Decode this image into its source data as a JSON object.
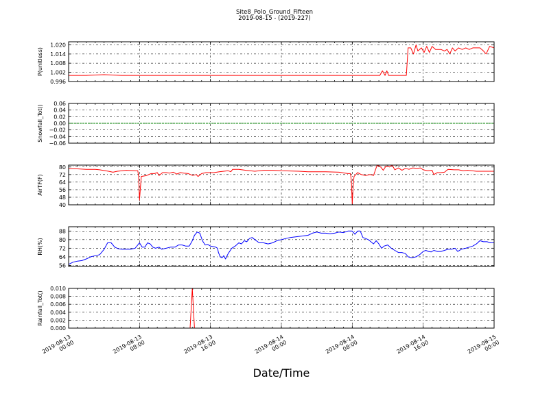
{
  "chart_data": {
    "type": "line",
    "title": "Site8_Polo_Ground_Fifteen",
    "subtitle": "2019-08-15 - (2019-227)",
    "xlabel": "Date/Time",
    "x_ticks": [
      {
        "line1": "2019-08-13",
        "line2": "00:00"
      },
      {
        "line1": "2019-08-13",
        "line2": "08:00"
      },
      {
        "line1": "2019-08-13",
        "line2": "16:00"
      },
      {
        "line1": "2019-08-14",
        "line2": "00:00"
      },
      {
        "line1": "2019-08-14",
        "line2": "08:00"
      },
      {
        "line1": "2019-08-14",
        "line2": "16:00"
      },
      {
        "line1": "2019-08-15",
        "line2": "00:00"
      }
    ],
    "x_range_hours": [
      0,
      48
    ],
    "grid": true,
    "panels": [
      {
        "ylabel": "P(unitless)",
        "color": "#ff0000",
        "ylim": [
          0.996,
          1.022
        ],
        "yticks": [
          "1.020",
          "1.014",
          "1.008",
          "1.002",
          "0.996"
        ],
        "yticks_num": [
          1.02,
          1.014,
          1.008,
          1.002,
          0.996
        ],
        "points": [
          [
            0,
            1.0
          ],
          [
            0.5,
            1.0
          ],
          [
            2,
            1.0
          ],
          [
            4,
            1.0005
          ],
          [
            6,
            1.0
          ],
          [
            10,
            1.0
          ],
          [
            15,
            1.0
          ],
          [
            20,
            1.0
          ],
          [
            25,
            1.0
          ],
          [
            30,
            1.0
          ],
          [
            35,
            1.0
          ],
          [
            35.1,
            1.0
          ],
          [
            35.4,
            1.003
          ],
          [
            35.7,
            1.0
          ],
          [
            35.9,
            1.003
          ],
          [
            36.1,
            1.0
          ],
          [
            37,
            1.0
          ],
          [
            38.1,
            1.0
          ],
          [
            38.3,
            1.018
          ],
          [
            38.6,
            1.018
          ],
          [
            38.9,
            1.014
          ],
          [
            39.2,
            1.02
          ],
          [
            39.4,
            1.016
          ],
          [
            39.8,
            1.018
          ],
          [
            40.1,
            1.015
          ],
          [
            40.4,
            1.019
          ],
          [
            40.7,
            1.015
          ],
          [
            41.0,
            1.019
          ],
          [
            41.4,
            1.017
          ],
          [
            42,
            1.017
          ],
          [
            42.4,
            1.016
          ],
          [
            42.7,
            1.017
          ],
          [
            43.0,
            1.014
          ],
          [
            43.3,
            1.018
          ],
          [
            43.6,
            1.016
          ],
          [
            44,
            1.018
          ],
          [
            44.4,
            1.017
          ],
          [
            44.8,
            1.018
          ],
          [
            45.2,
            1.017
          ],
          [
            45.6,
            1.018
          ],
          [
            46,
            1.018
          ],
          [
            46.4,
            1.018
          ],
          [
            46.8,
            1.016
          ],
          [
            47.1,
            1.014
          ],
          [
            47.5,
            1.019
          ],
          [
            48,
            1.018
          ]
        ]
      },
      {
        "ylabel": "Snowfall_Tot()",
        "color": "#008000",
        "ylim": [
          -0.06,
          0.06
        ],
        "yticks": [
          "0.06",
          "0.04",
          "0.02",
          "0.00",
          "−0.02",
          "−0.04",
          "−0.06"
        ],
        "yticks_num": [
          0.06,
          0.04,
          0.02,
          0.0,
          -0.02,
          -0.04,
          -0.06
        ],
        "points": [
          [
            0,
            0.0
          ],
          [
            48,
            0.0
          ]
        ]
      },
      {
        "ylabel": "AirTF(F)",
        "color": "#ff0000",
        "ylim": [
          40,
          82
        ],
        "yticks": [
          "80",
          "72",
          "64",
          "56",
          "48",
          "40"
        ],
        "yticks_num": [
          80,
          72,
          64,
          56,
          48,
          40
        ],
        "points": [
          [
            0,
            78
          ],
          [
            1,
            78
          ],
          [
            2,
            77.5
          ],
          [
            3,
            77.5
          ],
          [
            3.5,
            77
          ],
          [
            4.5,
            75.5
          ],
          [
            5,
            74.5
          ],
          [
            5.5,
            75.5
          ],
          [
            6.5,
            76.5
          ],
          [
            7.5,
            76
          ],
          [
            7.8,
            76
          ],
          [
            7.9,
            70
          ],
          [
            8.0,
            45
          ],
          [
            8.1,
            58
          ],
          [
            8.2,
            70
          ],
          [
            8.8,
            71
          ],
          [
            9.3,
            73
          ],
          [
            9.7,
            73
          ],
          [
            10,
            74
          ],
          [
            10.2,
            71
          ],
          [
            10.6,
            74
          ],
          [
            11,
            74
          ],
          [
            11.4,
            73.5
          ],
          [
            11.8,
            74.5
          ],
          [
            12.2,
            72.5
          ],
          [
            12.6,
            74
          ],
          [
            13,
            73.5
          ],
          [
            13.5,
            73
          ],
          [
            14,
            71
          ],
          [
            14.4,
            72
          ],
          [
            14.6,
            70
          ],
          [
            15,
            73
          ],
          [
            15.5,
            74
          ],
          [
            16.4,
            74
          ],
          [
            17,
            75
          ],
          [
            18,
            76
          ],
          [
            18.3,
            75
          ],
          [
            18.5,
            77.5
          ],
          [
            19.2,
            77.5
          ],
          [
            20,
            76.5
          ],
          [
            21,
            75.5
          ],
          [
            22,
            76.5
          ],
          [
            23,
            76.5
          ],
          [
            24,
            76
          ],
          [
            26,
            75.5
          ],
          [
            27,
            75
          ],
          [
            29,
            75
          ],
          [
            30.5,
            74.5
          ],
          [
            31.5,
            73
          ],
          [
            31.8,
            73
          ],
          [
            31.9,
            65
          ],
          [
            32.0,
            41
          ],
          [
            32.1,
            60
          ],
          [
            32.2,
            70
          ],
          [
            32.6,
            74
          ],
          [
            33,
            72
          ],
          [
            33.5,
            71
          ],
          [
            34,
            72
          ],
          [
            34.4,
            71
          ],
          [
            34.8,
            82
          ],
          [
            35.2,
            80
          ],
          [
            35.5,
            76.5
          ],
          [
            35.8,
            81
          ],
          [
            36.2,
            80
          ],
          [
            36.5,
            82
          ],
          [
            36.8,
            77
          ],
          [
            37.2,
            79
          ],
          [
            37.6,
            76.5
          ],
          [
            38,
            78.5
          ],
          [
            38.4,
            77.5
          ],
          [
            38.8,
            79
          ],
          [
            39.3,
            78.5
          ],
          [
            39.7,
            79
          ],
          [
            40,
            77
          ],
          [
            40.5,
            76
          ],
          [
            41,
            76.5
          ],
          [
            41.2,
            72
          ],
          [
            41.6,
            74
          ],
          [
            42,
            74
          ],
          [
            42.4,
            74.5
          ],
          [
            42.8,
            77.5
          ],
          [
            43.5,
            77
          ],
          [
            44,
            77
          ],
          [
            44.5,
            76
          ],
          [
            45,
            76.5
          ],
          [
            46,
            75.5
          ],
          [
            47,
            75.5
          ],
          [
            48,
            75.5
          ]
        ]
      },
      {
        "ylabel": "RH(%)",
        "color": "#0000ff",
        "ylim": [
          55,
          92
        ],
        "yticks": [
          "88",
          "80",
          "72",
          "64",
          "56"
        ],
        "yticks_num": [
          88,
          80,
          72,
          64,
          56
        ],
        "points": [
          [
            0,
            57
          ],
          [
            0.5,
            59
          ],
          [
            1,
            60
          ],
          [
            1.5,
            60.5
          ],
          [
            2,
            62
          ],
          [
            2.5,
            64
          ],
          [
            3,
            65
          ],
          [
            3.5,
            66
          ],
          [
            4,
            71
          ],
          [
            4.4,
            77
          ],
          [
            4.8,
            77
          ],
          [
            5.2,
            73
          ],
          [
            5.6,
            71.5
          ],
          [
            6,
            71
          ],
          [
            6.5,
            71
          ],
          [
            7,
            71
          ],
          [
            7.5,
            72
          ],
          [
            7.8,
            75
          ],
          [
            8.0,
            77
          ],
          [
            8.3,
            73
          ],
          [
            8.6,
            73
          ],
          [
            8.9,
            77
          ],
          [
            9.2,
            76
          ],
          [
            9.5,
            73
          ],
          [
            9.8,
            72
          ],
          [
            10.2,
            73
          ],
          [
            10.5,
            71
          ],
          [
            11,
            72
          ],
          [
            11.5,
            73
          ],
          [
            12,
            73
          ],
          [
            12.4,
            75
          ],
          [
            12.8,
            75
          ],
          [
            13.2,
            74
          ],
          [
            13.6,
            74
          ],
          [
            13.9,
            78
          ],
          [
            14.2,
            84
          ],
          [
            14.5,
            87
          ],
          [
            14.8,
            86
          ],
          [
            15.1,
            79
          ],
          [
            15.4,
            75
          ],
          [
            15.7,
            75.5
          ],
          [
            16.0,
            74
          ],
          [
            16.3,
            73.5
          ],
          [
            16.6,
            73
          ],
          [
            16.8,
            72
          ],
          [
            16.9,
            68
          ],
          [
            17.1,
            64
          ],
          [
            17.3,
            63
          ],
          [
            17.5,
            65
          ],
          [
            17.7,
            62
          ],
          [
            18,
            67
          ],
          [
            18.4,
            72
          ],
          [
            18.8,
            74
          ],
          [
            19.2,
            77
          ],
          [
            19.5,
            76
          ],
          [
            19.8,
            79
          ],
          [
            20.1,
            78
          ],
          [
            20.4,
            81
          ],
          [
            20.7,
            82
          ],
          [
            21,
            80
          ],
          [
            21.5,
            77
          ],
          [
            22,
            77
          ],
          [
            22.5,
            76
          ],
          [
            23,
            77
          ],
          [
            23.5,
            79
          ],
          [
            24,
            80
          ],
          [
            24.5,
            81
          ],
          [
            25,
            82
          ],
          [
            26,
            83
          ],
          [
            27,
            84
          ],
          [
            27.5,
            86
          ],
          [
            28,
            87
          ],
          [
            28.5,
            86
          ],
          [
            29,
            86
          ],
          [
            29.5,
            85.5
          ],
          [
            30,
            86
          ],
          [
            30.5,
            87
          ],
          [
            31,
            86.5
          ],
          [
            31.5,
            88
          ],
          [
            32,
            88
          ],
          [
            32.3,
            85
          ],
          [
            32.6,
            88
          ],
          [
            32.9,
            88
          ],
          [
            33.2,
            82
          ],
          [
            33.5,
            81
          ],
          [
            33.8,
            80
          ],
          [
            34.1,
            78
          ],
          [
            34.4,
            76
          ],
          [
            34.7,
            79
          ],
          [
            35.0,
            76
          ],
          [
            35.3,
            72
          ],
          [
            35.6,
            74
          ],
          [
            36,
            75
          ],
          [
            36.4,
            72
          ],
          [
            36.8,
            70
          ],
          [
            37.2,
            68
          ],
          [
            37.6,
            68
          ],
          [
            38,
            67
          ],
          [
            38.3,
            64
          ],
          [
            38.7,
            63
          ],
          [
            39.2,
            64
          ],
          [
            39.6,
            66
          ],
          [
            40,
            69
          ],
          [
            40.3,
            70
          ],
          [
            40.6,
            69
          ],
          [
            40.9,
            68.5
          ],
          [
            41.2,
            70
          ],
          [
            41.6,
            69
          ],
          [
            42,
            69
          ],
          [
            42.4,
            70
          ],
          [
            42.8,
            71
          ],
          [
            43.2,
            71
          ],
          [
            43.6,
            72
          ],
          [
            43.9,
            69
          ],
          [
            44.3,
            71
          ],
          [
            44.8,
            72
          ],
          [
            45.2,
            73
          ],
          [
            45.6,
            74
          ],
          [
            46,
            76
          ],
          [
            46.4,
            79
          ],
          [
            46.8,
            78
          ],
          [
            47.2,
            78
          ],
          [
            47.6,
            77
          ],
          [
            48,
            77
          ]
        ]
      },
      {
        "ylabel": "Rainfall_Tot()",
        "color": "#ff0000",
        "ylim": [
          0,
          0.01
        ],
        "yticks": [
          "0.010",
          "0.008",
          "0.006",
          "0.004",
          "0.002",
          "0.000"
        ],
        "yticks_num": [
          0.01,
          0.008,
          0.006,
          0.004,
          0.002,
          0.0
        ],
        "points": [
          [
            0,
            0.0
          ],
          [
            13.7,
            0.0
          ],
          [
            13.95,
            0.01
          ],
          [
            14.2,
            0.0
          ],
          [
            48,
            0.0
          ]
        ]
      }
    ]
  }
}
